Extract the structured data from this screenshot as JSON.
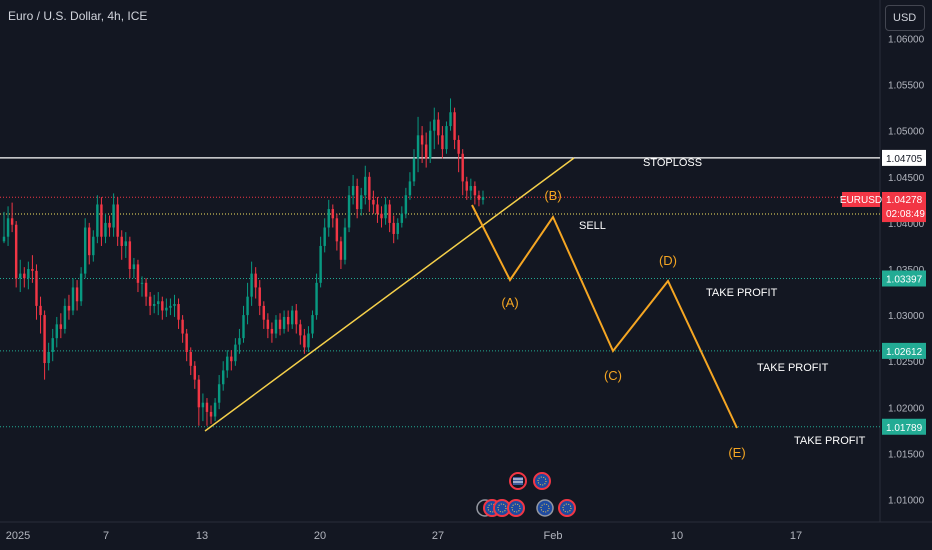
{
  "header": {
    "symbol_title": "Euro / U.S. Dollar, 4h, ICE",
    "currency": "USD"
  },
  "chart_data": {
    "type": "candlestick",
    "symbol": "EURUSD",
    "interval": "4h",
    "y_axis": {
      "min": 1.006,
      "max": 1.0635,
      "ticks": [
        1.06,
        1.055,
        1.05,
        1.045,
        1.04,
        1.035,
        1.03,
        1.025,
        1.02,
        1.015,
        1.01
      ],
      "tick_decimals": 5
    },
    "x_axis": {
      "labels": [
        "2025",
        "7",
        "13",
        "20",
        "27",
        "Feb",
        "10",
        "17"
      ]
    },
    "candles": [
      [
        1.038,
        1.0385,
        1.0378,
        1.0412
      ],
      [
        1.0385,
        1.0405,
        1.0375,
        1.0418
      ],
      [
        1.0405,
        1.0398,
        1.039,
        1.0422
      ],
      [
        1.0398,
        1.034,
        1.033,
        1.0402
      ],
      [
        1.034,
        1.0345,
        1.0325,
        1.036
      ],
      [
        1.0345,
        1.034,
        1.033,
        1.0352
      ],
      [
        1.034,
        1.035,
        1.0328,
        1.0358
      ],
      [
        1.035,
        1.0348,
        1.0335,
        1.0365
      ],
      [
        1.0348,
        1.031,
        1.0295,
        1.0355
      ],
      [
        1.031,
        1.03,
        1.028,
        1.032
      ],
      [
        1.03,
        1.0248,
        1.023,
        1.0305
      ],
      [
        1.0248,
        1.026,
        1.024,
        1.027
      ],
      [
        1.026,
        1.0275,
        1.025,
        1.0285
      ],
      [
        1.0275,
        1.029,
        1.0265,
        1.0298
      ],
      [
        1.029,
        1.0285,
        1.0275,
        1.0302
      ],
      [
        1.0285,
        1.031,
        1.028,
        1.0318
      ],
      [
        1.031,
        1.0305,
        1.0295,
        1.0322
      ],
      [
        1.0305,
        1.033,
        1.03,
        1.034
      ],
      [
        1.033,
        1.0315,
        1.0305,
        1.0338
      ],
      [
        1.0315,
        1.0345,
        1.031,
        1.0352
      ],
      [
        1.0345,
        1.0395,
        1.034,
        1.0405
      ],
      [
        1.0395,
        1.0365,
        1.0355,
        1.04
      ],
      [
        1.0365,
        1.0385,
        1.0358,
        1.0392
      ],
      [
        1.0385,
        1.042,
        1.0378,
        1.043
      ],
      [
        1.042,
        1.0385,
        1.0375,
        1.0428
      ],
      [
        1.0385,
        1.04,
        1.0378,
        1.041
      ],
      [
        1.04,
        1.0395,
        1.0385,
        1.0408
      ],
      [
        1.0395,
        1.042,
        1.0385,
        1.0432
      ],
      [
        1.042,
        1.0385,
        1.0375,
        1.0428
      ],
      [
        1.0385,
        1.0375,
        1.036,
        1.0392
      ],
      [
        1.0375,
        1.038,
        1.0362,
        1.039
      ],
      [
        1.038,
        1.035,
        1.034,
        1.0385
      ],
      [
        1.035,
        1.0355,
        1.034,
        1.0362
      ],
      [
        1.0355,
        1.0335,
        1.0325,
        1.036
      ],
      [
        1.0335,
        1.0335,
        1.032,
        1.0342
      ],
      [
        1.0335,
        1.032,
        1.031,
        1.034
      ],
      [
        1.032,
        1.031,
        1.03,
        1.0325
      ],
      [
        1.031,
        1.0312,
        1.0302,
        1.0322
      ],
      [
        1.0312,
        1.0315,
        1.03,
        1.0325
      ],
      [
        1.0315,
        1.0305,
        1.0295,
        1.032
      ],
      [
        1.0305,
        1.0308,
        1.0298,
        1.0318
      ],
      [
        1.0308,
        1.031,
        1.03,
        1.0318
      ],
      [
        1.031,
        1.0312,
        1.0298,
        1.0322
      ],
      [
        1.0312,
        1.0295,
        1.0285,
        1.0318
      ],
      [
        1.0295,
        1.028,
        1.027,
        1.03
      ],
      [
        1.028,
        1.026,
        1.025,
        1.0285
      ],
      [
        1.026,
        1.0245,
        1.0235,
        1.0265
      ],
      [
        1.0245,
        1.023,
        1.022,
        1.025
      ],
      [
        1.023,
        1.02,
        1.018,
        1.0235
      ],
      [
        1.02,
        1.0205,
        1.0185,
        1.0215
      ],
      [
        1.0205,
        1.0195,
        1.018,
        1.021
      ],
      [
        1.0195,
        1.019,
        1.0182,
        1.0202
      ],
      [
        1.019,
        1.0205,
        1.0185,
        1.021
      ],
      [
        1.0205,
        1.0225,
        1.0198,
        1.0235
      ],
      [
        1.0225,
        1.024,
        1.0218,
        1.025
      ],
      [
        1.024,
        1.0255,
        1.0232,
        1.0262
      ],
      [
        1.0255,
        1.025,
        1.024,
        1.0262
      ],
      [
        1.025,
        1.0268,
        1.0245,
        1.0275
      ],
      [
        1.0268,
        1.0275,
        1.0258,
        1.0285
      ],
      [
        1.0275,
        1.03,
        1.027,
        1.031
      ],
      [
        1.03,
        1.032,
        1.029,
        1.0335
      ],
      [
        1.032,
        1.0345,
        1.031,
        1.0358
      ],
      [
        1.0345,
        1.033,
        1.0318,
        1.0352
      ],
      [
        1.033,
        1.031,
        1.03,
        1.0338
      ],
      [
        1.031,
        1.0295,
        1.0285,
        1.0315
      ],
      [
        1.0295,
        1.0285,
        1.0275,
        1.0302
      ],
      [
        1.0285,
        1.028,
        1.027,
        1.0292
      ],
      [
        1.028,
        1.0295,
        1.0275,
        1.03
      ],
      [
        1.0295,
        1.0285,
        1.0278,
        1.0302
      ],
      [
        1.0285,
        1.0298,
        1.028,
        1.0305
      ],
      [
        1.0298,
        1.029,
        1.0282,
        1.0305
      ],
      [
        1.029,
        1.0305,
        1.0285,
        1.031
      ],
      [
        1.0305,
        1.029,
        1.028,
        1.0312
      ],
      [
        1.029,
        1.0278,
        1.0268,
        1.0295
      ],
      [
        1.0278,
        1.0265,
        1.0258,
        1.0285
      ],
      [
        1.0265,
        1.028,
        1.026,
        1.0288
      ],
      [
        1.028,
        1.03,
        1.0275,
        1.0305
      ],
      [
        1.03,
        1.0335,
        1.0295,
        1.0345
      ],
      [
        1.0335,
        1.0375,
        1.033,
        1.0385
      ],
      [
        1.0375,
        1.0395,
        1.0368,
        1.0405
      ],
      [
        1.0395,
        1.0415,
        1.0385,
        1.0425
      ],
      [
        1.0415,
        1.0405,
        1.0395,
        1.042
      ],
      [
        1.0405,
        1.038,
        1.037,
        1.041
      ],
      [
        1.038,
        1.036,
        1.035,
        1.0385
      ],
      [
        1.036,
        1.0395,
        1.0355,
        1.0405
      ],
      [
        1.0395,
        1.043,
        1.039,
        1.044
      ],
      [
        1.043,
        1.044,
        1.042,
        1.0452
      ],
      [
        1.044,
        1.0415,
        1.0405,
        1.0448
      ],
      [
        1.0415,
        1.043,
        1.0408,
        1.0438
      ],
      [
        1.043,
        1.045,
        1.042,
        1.0462
      ],
      [
        1.045,
        1.0425,
        1.0412,
        1.0455
      ],
      [
        1.0425,
        1.042,
        1.041,
        1.0435
      ],
      [
        1.042,
        1.041,
        1.04,
        1.0428
      ],
      [
        1.041,
        1.0405,
        1.0395,
        1.0418
      ],
      [
        1.0405,
        1.042,
        1.0398,
        1.0428
      ],
      [
        1.042,
        1.04,
        1.039,
        1.0425
      ],
      [
        1.04,
        1.0388,
        1.0378,
        1.0408
      ],
      [
        1.0388,
        1.04,
        1.0382,
        1.0405
      ],
      [
        1.04,
        1.041,
        1.0395,
        1.0418
      ],
      [
        1.041,
        1.043,
        1.0405,
        1.0438
      ],
      [
        1.043,
        1.0445,
        1.0425,
        1.0455
      ],
      [
        1.0445,
        1.047,
        1.044,
        1.048
      ],
      [
        1.047,
        1.0495,
        1.0455,
        1.0515
      ],
      [
        1.0495,
        1.0485,
        1.0465,
        1.0505
      ],
      [
        1.0485,
        1.047,
        1.046,
        1.0498
      ],
      [
        1.047,
        1.05,
        1.0465,
        1.051
      ],
      [
        1.05,
        1.0512,
        1.048,
        1.0525
      ],
      [
        1.0512,
        1.0495,
        1.0485,
        1.052
      ],
      [
        1.0495,
        1.048,
        1.047,
        1.0505
      ],
      [
        1.048,
        1.0505,
        1.0475,
        1.051
      ],
      [
        1.0505,
        1.052,
        1.05,
        1.0535
      ],
      [
        1.052,
        1.049,
        1.048,
        1.0525
      ],
      [
        1.049,
        1.0475,
        1.0455,
        1.0495
      ],
      [
        1.0475,
        1.0445,
        1.043,
        1.048
      ],
      [
        1.0445,
        1.0435,
        1.0425,
        1.045
      ],
      [
        1.0435,
        1.044,
        1.0425,
        1.0448
      ],
      [
        1.044,
        1.043,
        1.042,
        1.0445
      ],
      [
        1.043,
        1.0425,
        1.0418,
        1.0435
      ],
      [
        1.0425,
        1.0428,
        1.042,
        1.0435
      ]
    ],
    "horizontal_levels": [
      {
        "price": 1.04705,
        "label": "1.04705",
        "color": "#ffffff",
        "style": "solid"
      },
      {
        "price": 1.04278,
        "label": "1.04278",
        "color": "#f23645",
        "style": "dotted"
      },
      {
        "price": 1.04096,
        "label": "1.04096",
        "color": "#f5e663",
        "style": "dotted"
      },
      {
        "price": 1.03397,
        "label": "1.03397",
        "color": "#22ab94",
        "style": "dotted"
      },
      {
        "price": 1.02612,
        "label": "1.02612",
        "color": "#22ab94",
        "style": "dotted"
      },
      {
        "price": 1.01789,
        "label": "1.01789",
        "color": "#22ab94",
        "style": "dotted"
      }
    ],
    "price_tag": {
      "symbol": "EURUSD",
      "price": "1.04278",
      "countdown": "02:08:49"
    },
    "annotations": {
      "stoploss": "STOPLOSS",
      "sell": "SELL",
      "take_profit_1": "TAKE PROFIT",
      "take_profit_2": "TAKE PROFIT",
      "take_profit_3": "TAKE PROFIT",
      "wave_a": "(A)",
      "wave_b": "(B)",
      "wave_c": "(C)",
      "wave_d": "(D)",
      "wave_e": "(E)"
    },
    "trendline_color": "#f5d04a",
    "wave_color": "#f5a623",
    "colors": {
      "up": "#089981",
      "down": "#f23645",
      "background": "#131722"
    },
    "event_flags": [
      "us-flag",
      "eu-flag",
      "eu-flag",
      "eu-flag",
      "us-flag",
      "eu-flag"
    ]
  }
}
